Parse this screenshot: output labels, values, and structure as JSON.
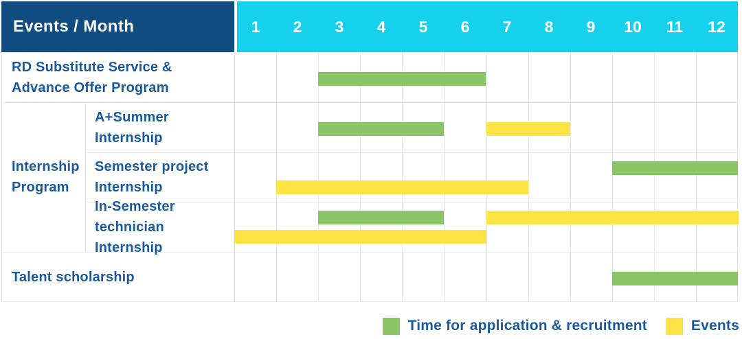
{
  "header": {
    "title": "Events / Month",
    "months": [
      "1",
      "2",
      "3",
      "4",
      "5",
      "6",
      "7",
      "8",
      "9",
      "10",
      "11",
      "12"
    ]
  },
  "group": {
    "label": "Internship Program",
    "label_lines": [
      "Internship",
      "Program"
    ]
  },
  "legend": {
    "items": [
      {
        "series": "recruitment",
        "label": "Time for application & recruitment",
        "color": "#89c766"
      },
      {
        "series": "events",
        "label": "Events",
        "color": "#fde344"
      }
    ]
  },
  "colors": {
    "header_bg": "#114c80",
    "months_bg": "#16d1ec",
    "header_text": "#ffffff",
    "label_text": "#1a5a9c",
    "grid": "#e8e8e8",
    "recruitment": "#89c766",
    "events": "#fde344"
  },
  "chart_data": {
    "type": "bar",
    "subtype": "gantt-timeline",
    "title": "Events / Month",
    "xlabel": "Month",
    "x_ticks": [
      "1",
      "2",
      "3",
      "4",
      "5",
      "6",
      "7",
      "8",
      "9",
      "10",
      "11",
      "12"
    ],
    "x_range": [
      1,
      12
    ],
    "grid": true,
    "legend_position": "bottom-right",
    "series_legend": [
      {
        "name": "Time for application & recruitment",
        "color": "#89c766"
      },
      {
        "name": "Events",
        "color": "#fde344"
      }
    ],
    "rows": [
      {
        "label": "RD Substitute Service & Advance Offer Program",
        "label_lines": [
          "RD Substitute Service &",
          "Advance Offer Program"
        ],
        "group": "",
        "lines": [
          [
            {
              "series": "recruitment",
              "start_month": 3,
              "end_month": 6
            }
          ]
        ]
      },
      {
        "label": "A+Summer Internship",
        "label_lines": [
          "A+Summer",
          "Internship"
        ],
        "group": "Internship Program",
        "lines": [
          [
            {
              "series": "recruitment",
              "start_month": 3,
              "end_month": 5
            },
            {
              "series": "events",
              "start_month": 7,
              "end_month": 8
            }
          ]
        ]
      },
      {
        "label": "Semester project Internship",
        "label_lines": [
          "Semester project",
          "Internship"
        ],
        "group": "Internship Program",
        "lines": [
          [
            {
              "series": "recruitment",
              "start_month": 10,
              "end_month": 12
            }
          ],
          [
            {
              "series": "events",
              "start_month": 2,
              "end_month": 7
            }
          ]
        ]
      },
      {
        "label": "In-Semester technician Internship",
        "label_lines": [
          "In-Semester",
          "technician Internship"
        ],
        "group": "Internship Program",
        "lines": [
          [
            {
              "series": "recruitment",
              "start_month": 3,
              "end_month": 5
            },
            {
              "series": "events",
              "start_month": 7,
              "end_month": 12
            }
          ],
          [
            {
              "series": "events",
              "start_month": 1,
              "end_month": 6
            }
          ]
        ]
      },
      {
        "label": "Talent scholarship",
        "label_lines": [
          "Talent scholarship"
        ],
        "group": "",
        "lines": [
          [
            {
              "series": "recruitment",
              "start_month": 10,
              "end_month": 12
            }
          ]
        ]
      }
    ]
  }
}
